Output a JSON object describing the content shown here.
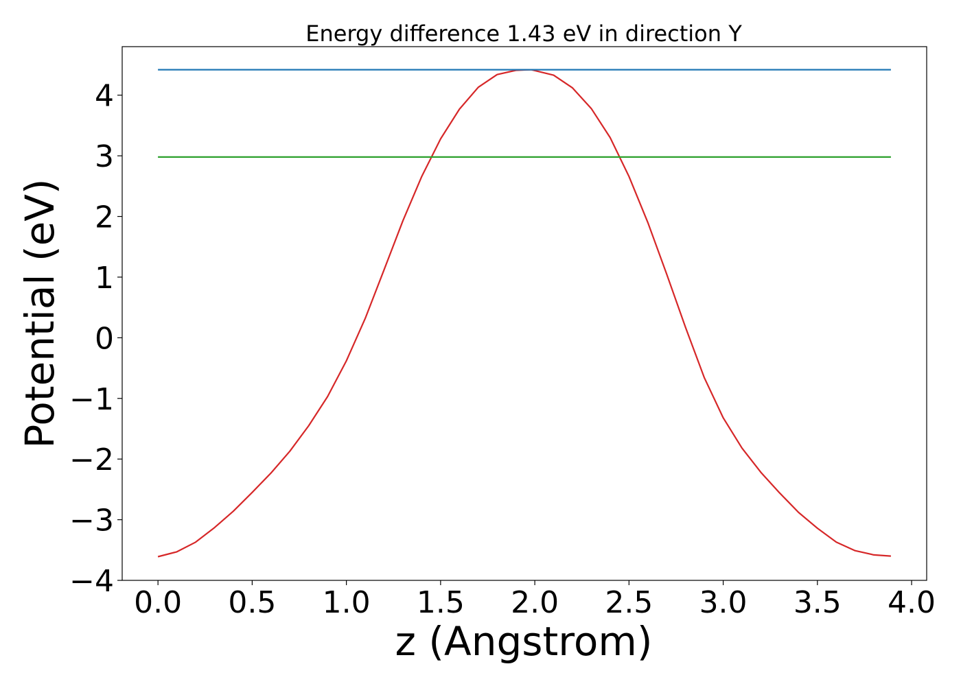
{
  "chart_data": {
    "type": "line",
    "title": "Energy difference 1.43 eV in direction Y",
    "xlabel": "z (Angstrom)",
    "ylabel": "Potential (eV)",
    "xlim": [
      -0.19,
      4.08
    ],
    "ylim": [
      -4.0,
      4.8
    ],
    "xticks": [
      0.0,
      0.5,
      1.0,
      1.5,
      2.0,
      2.5,
      3.0,
      3.5,
      4.0
    ],
    "xtick_labels": [
      "0.0",
      "0.5",
      "1.0",
      "1.5",
      "2.0",
      "2.5",
      "3.0",
      "3.5",
      "4.0"
    ],
    "yticks": [
      -4,
      -3,
      -2,
      -1,
      0,
      1,
      2,
      3,
      4
    ],
    "ytick_labels": [
      "−4",
      "−3",
      "−2",
      "−1",
      "0",
      "1",
      "2",
      "3",
      "4"
    ],
    "grid": false,
    "series": [
      {
        "color": "#d62728",
        "x": [
          0.0,
          0.1,
          0.2,
          0.3,
          0.4,
          0.5,
          0.6,
          0.7,
          0.8,
          0.9,
          1.0,
          1.1,
          1.2,
          1.3,
          1.4,
          1.5,
          1.6,
          1.7,
          1.8,
          1.9,
          1.98,
          2.1,
          2.2,
          2.3,
          2.4,
          2.5,
          2.6,
          2.7,
          2.8,
          2.9,
          3.0,
          3.1,
          3.2,
          3.3,
          3.4,
          3.5,
          3.6,
          3.7,
          3.8,
          3.89
        ],
        "y": [
          -3.61,
          -3.53,
          -3.37,
          -3.13,
          -2.86,
          -2.55,
          -2.23,
          -1.87,
          -1.45,
          -0.97,
          -0.38,
          0.32,
          1.12,
          1.93,
          2.66,
          3.28,
          3.77,
          4.13,
          4.34,
          4.41,
          4.42,
          4.33,
          4.12,
          3.78,
          3.3,
          2.66,
          1.9,
          1.05,
          0.17,
          -0.66,
          -1.32,
          -1.82,
          -2.22,
          -2.56,
          -2.88,
          -3.14,
          -3.37,
          -3.51,
          -3.58,
          -3.6
        ]
      },
      {
        "color": "#1f77b4",
        "x": [
          0.0,
          3.89
        ],
        "y": [
          4.42,
          4.42
        ]
      },
      {
        "color": "#2ca02c",
        "x": [
          0.0,
          3.89
        ],
        "y": [
          2.98,
          2.98
        ]
      }
    ]
  }
}
